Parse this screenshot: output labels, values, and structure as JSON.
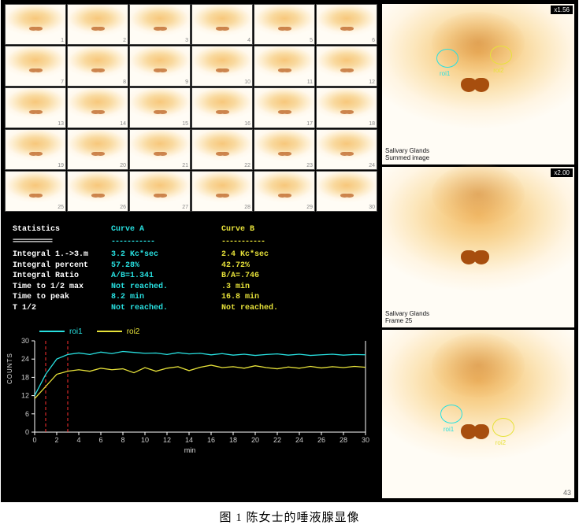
{
  "caption": "图 1  陈女士的唾液腺显像",
  "thumbnails": {
    "count": 30
  },
  "stats": {
    "header": {
      "title": "Statistics",
      "curveA": "Curve A",
      "curveB": "Curve B"
    },
    "rows": [
      {
        "label": "Integral 1.->3.m",
        "a": "3.2 Kc*sec",
        "b": "2.4 Kc*sec"
      },
      {
        "label": "Integral percent",
        "a": "57.28%",
        "b": "42.72%"
      },
      {
        "label": "Integral Ratio",
        "a": "A/B=1.341",
        "b": "B/A=.746"
      },
      {
        "label": "Time to 1/2 max",
        "a": "Not reached.",
        "b": ".3 min"
      },
      {
        "label": "Time to peak",
        "a": "8.2 min",
        "b": "16.8 min"
      },
      {
        "label": "T 1/2",
        "a": "Not reached.",
        "b": "Not reached."
      }
    ],
    "colors": {
      "labels": "#ffffff",
      "a": "#28e0e0",
      "b": "#e7e23a"
    }
  },
  "chart": {
    "type": "line",
    "legend": [
      {
        "name": "roi1",
        "color": "#28e0e0"
      },
      {
        "name": "roi2",
        "color": "#e7e23a"
      }
    ],
    "xlim": [
      0,
      30
    ],
    "ylim": [
      0,
      30
    ],
    "xtick_step": 2,
    "ytick_step": 6,
    "xlabel": "min",
    "ylabel": "COUNTS",
    "label_fontsize": 9,
    "axis_color": "#ffffff",
    "tick_color": "#cccccc",
    "vref_lines": {
      "x": [
        1,
        3
      ],
      "color": "#ff3030",
      "dash": "4,3"
    },
    "background_color": "#000000",
    "series": {
      "roi1": {
        "color": "#28e0e0",
        "width": 1.3,
        "x": [
          0,
          1,
          2,
          3,
          4,
          5,
          6,
          7,
          8,
          9,
          10,
          11,
          12,
          13,
          14,
          15,
          16,
          17,
          18,
          19,
          20,
          21,
          22,
          23,
          24,
          25,
          26,
          27,
          28,
          29,
          30
        ],
        "y": [
          12,
          19,
          24,
          25.5,
          26,
          25.5,
          26.3,
          25.8,
          26.5,
          26.2,
          25.9,
          26,
          25.5,
          26.1,
          25.7,
          25.9,
          25.4,
          25.8,
          25.3,
          25.6,
          25.2,
          25.5,
          25.7,
          25.3,
          25.6,
          25.2,
          25.4,
          25.6,
          25.3,
          25.5,
          25.4
        ]
      },
      "roi2": {
        "color": "#e7e23a",
        "width": 1.3,
        "x": [
          0,
          1,
          2,
          3,
          4,
          5,
          6,
          7,
          8,
          9,
          10,
          11,
          12,
          13,
          14,
          15,
          16,
          17,
          18,
          19,
          20,
          21,
          22,
          23,
          24,
          25,
          26,
          27,
          28,
          29,
          30
        ],
        "y": [
          11,
          15,
          19,
          20,
          20.5,
          20,
          21,
          20.5,
          20.8,
          19.5,
          21.2,
          20,
          21,
          21.5,
          20.2,
          21.3,
          22,
          21.2,
          21.5,
          21,
          21.8,
          21.2,
          20.8,
          21.4,
          21,
          21.6,
          21.1,
          21.5,
          21.2,
          21.6,
          21.3
        ]
      }
    }
  },
  "panes": {
    "p1": {
      "zoom": "x1.56",
      "caption_line1": "Salivary Glands",
      "caption_line2": "Summed image",
      "roi": [
        {
          "name": "roi1",
          "color": "#28e0e0",
          "cx_pct": 34,
          "cy_pct": 34
        },
        {
          "name": "roi2",
          "color": "#e7e23a",
          "cx_pct": 62,
          "cy_pct": 32
        }
      ]
    },
    "p2": {
      "zoom": "x2.00",
      "caption_line1": "Salivary Glands",
      "caption_line2": "Frame 25"
    },
    "p3": {
      "corner": "43",
      "roi": [
        {
          "name": "roi1",
          "color": "#28e0e0",
          "cx_pct": 36,
          "cy_pct": 50
        },
        {
          "name": "roi2",
          "color": "#e7e23a",
          "cx_pct": 63,
          "cy_pct": 58
        }
      ]
    }
  }
}
